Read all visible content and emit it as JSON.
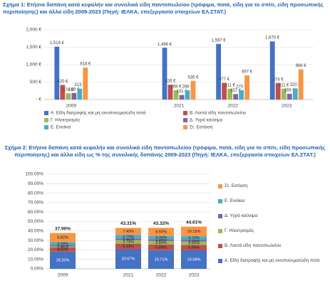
{
  "chart_data": [
    {
      "type": "bar",
      "title": "Σχήμα 1: Ετήσια δαπάνη κατά κεφαλήν και συνολικά είδη παντοπωλείου (τρόφιμα, ποτά, είδη για το σπίτι, είδη προσωπικής περιποίησης) και άλλα είδη 2009-2023 (Πηγή: ΙΕΛΚΑ, επεξεργασία στοιχείων ΕΛ.ΣΤΑΤ.)",
      "categories": [
        "2009",
        null,
        "2021",
        "2022",
        "2023"
      ],
      "ylim": [
        0,
        2000
      ],
      "yticks": [
        {
          "value": 0,
          "label": "- €"
        },
        {
          "value": 500,
          "label": "500 €"
        },
        {
          "value": 1000,
          "label": "1,000 €"
        },
        {
          "value": 1500,
          "label": "1,500 €"
        },
        {
          "value": 2000,
          "label": "2,000 €"
        }
      ],
      "grid": true,
      "series": [
        {
          "name": "Α. Είδη διατροφής και μη οινοπνευματώδη ποτά",
          "color": "#4472c4",
          "values": [
            1519,
            null,
            1486,
            1597,
            1670
          ],
          "value_labels": [
            "1,519 €",
            null,
            "1,486 €",
            "1,597 €",
            "1,670 €"
          ]
        },
        {
          "name": "Β. Λοιπά είδη παντοπωλείου",
          "color": "#c0504d",
          "values": [
            420,
            null,
            426,
            477,
            474
          ],
          "value_labels": [
            "420 €",
            null,
            "426 €",
            "477 €",
            "474 €"
          ]
        },
        {
          "name": "Γ. Ηλεκτρισμός",
          "color": "#9bbb59",
          "values": [
            178,
            null,
            269,
            311,
            311
          ],
          "value_labels": [
            "178 €",
            null,
            "269 €",
            "311 €",
            "311 €"
          ]
        },
        {
          "name": "Δ. Υγρά καύσιμα",
          "color": "#8064a2",
          "values": [
            189,
            null,
            131,
            157,
            166
          ],
          "value_labels": [
            "189 €",
            null,
            "131 €",
            "157 €",
            "166 €"
          ]
        },
        {
          "name": "Ε. Ενοίκια",
          "color": "#4bacc6",
          "values": [
            313,
            null,
            266,
            270,
            320
          ],
          "value_labels": [
            "313 €",
            null,
            "266 €",
            "270 €",
            "320 €"
          ]
        },
        {
          "name": "Στ. Εστίαση",
          "color": "#f79646",
          "values": [
            918,
            null,
            535,
            697,
            866
          ],
          "value_labels": [
            "918 €",
            null,
            "535 €",
            "697 €",
            "866 €"
          ]
        }
      ]
    },
    {
      "type": "stacked_bar",
      "title": "Σχήμα 2: Ετήσια δαπάνη κατά κεφαλήν και συνολικά είδη παντοπωλείου (τρόφιμα, ποτά, είδη για το σπίτι, είδη προσωπικής περιποίησης) και άλλα είδη ως % της συνολικής δαπάνης 2009-2023 (Πηγή: ΙΕΛΚΑ, επεξεργασία στοιχείων ΕΛ.ΣΤΑΤ.)",
      "categories": [
        "2009",
        null,
        "2021",
        "2022",
        "2023"
      ],
      "ylim": [
        0,
        100
      ],
      "yticks": [
        {
          "value": 0,
          "label": "0.00%"
        },
        {
          "value": 10,
          "label": "10.00%"
        },
        {
          "value": 20,
          "label": "20.00%"
        },
        {
          "value": 30,
          "label": "30.00%"
        },
        {
          "value": 40,
          "label": "40.00%"
        },
        {
          "value": 50,
          "label": "50.00%"
        },
        {
          "value": 60,
          "label": "60.00%"
        },
        {
          "value": 70,
          "label": "70.00%"
        },
        {
          "value": 80,
          "label": "80.00%"
        },
        {
          "value": 90,
          "label": "90.00%"
        },
        {
          "value": 100,
          "label": "100.00%"
        }
      ],
      "grid": true,
      "totals": [
        37.9,
        null,
        43.31,
        43.32,
        44.61
      ],
      "total_labels": [
        "37.90%",
        null,
        "43.31%",
        "43.32%",
        "44.61%"
      ],
      "series": [
        {
          "name": "Α. Είδη διατροφής και μη οινοπνευματώδη ποτά",
          "color": "#4472c4",
          "values": [
            18.2,
            null,
            20.67,
            19.71,
            19.58
          ],
          "value_labels": [
            "18.20%",
            null,
            "20.67%",
            "19.71%",
            "19.58%"
          ]
        },
        {
          "name": "Β. Λοιπά είδη παντοπωλείου",
          "color": "#c0504d",
          "values": [
            4.5,
            null,
            5.93,
            5.89,
            5.56
          ],
          "value_labels": [
            "4.50%",
            null,
            "5.93%",
            "5.89%",
            "5.56%"
          ]
        },
        {
          "name": "Γ. Ηλεκτρισμός",
          "color": "#9bbb59",
          "values": [
            1.0,
            null,
            3.74,
            3.84,
            3.65
          ],
          "value_labels": [
            "1.00%",
            null,
            "3.74%",
            "3.84%",
            "3.65%"
          ]
        },
        {
          "name": "Δ. Υγρά καύσιμα",
          "color": "#8064a2",
          "values": [
            1.1,
            null,
            1.82,
            1.94,
            1.95
          ],
          "value_labels": [
            "1.10%",
            null,
            "1.82%",
            "1.94%",
            "1.95%"
          ]
        },
        {
          "name": "Ε. Ενοίκια",
          "color": "#4bacc6",
          "values": [
            3.28,
            null,
            3.7,
            3.34,
            3.72
          ],
          "value_labels": [
            "3.28%",
            null,
            "3.70%",
            "3.34%",
            "3.72%"
          ]
        },
        {
          "name": "Στ. Εστίαση",
          "color": "#f79646",
          "values": [
            9.82,
            null,
            7.45,
            8.6,
            10.15
          ],
          "value_labels": [
            "9.82%",
            null,
            "7.45%",
            "8.60%",
            "10.15%"
          ]
        }
      ]
    }
  ]
}
